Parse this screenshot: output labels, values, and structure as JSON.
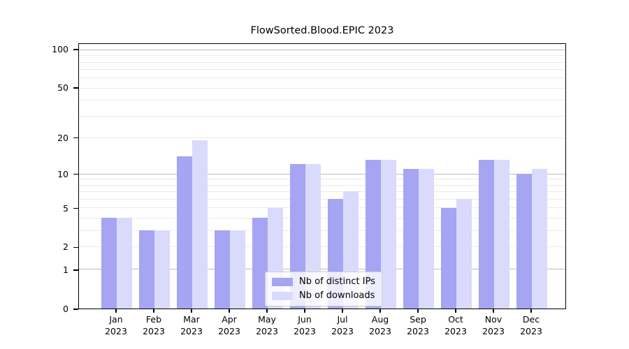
{
  "chart_data": {
    "type": "bar",
    "title": "FlowSorted.Blood.EPIC 2023",
    "categories": [
      "Jan",
      "Feb",
      "Mar",
      "Apr",
      "May",
      "Jun",
      "Jul",
      "Aug",
      "Sep",
      "Oct",
      "Nov",
      "Dec"
    ],
    "x_year_line": "2023",
    "series": [
      {
        "name": "Nb of distinct IPs",
        "color": "#a5a5f3",
        "values": [
          4,
          3,
          14,
          3,
          4,
          12,
          6,
          13,
          11,
          5,
          13,
          10
        ]
      },
      {
        "name": "Nb of downloads",
        "color": "#dadafc",
        "values": [
          4,
          3,
          19,
          3,
          5,
          12,
          7,
          13,
          11,
          6,
          13,
          11
        ]
      }
    ],
    "yscale": "log10(1+y)",
    "ylim": [
      0,
      112
    ],
    "yticks": [
      {
        "value": 100,
        "label": "100"
      },
      {
        "value": 50,
        "label": "50"
      },
      {
        "value": 20,
        "label": "20"
      },
      {
        "value": 10,
        "label": "10"
      },
      {
        "value": 5,
        "label": "5"
      },
      {
        "value": 2,
        "label": "2"
      },
      {
        "value": 1,
        "label": "1"
      },
      {
        "value": 0,
        "label": "0"
      }
    ],
    "major_gridlines": [
      1,
      10,
      100
    ],
    "minor_gridlines": [
      2,
      3,
      4,
      5,
      6,
      7,
      8,
      9,
      20,
      30,
      40,
      50,
      60,
      70,
      80,
      90
    ],
    "grid": "on",
    "legend_position": "lower center",
    "colors": {
      "grid_minor": "#ebebeb",
      "grid_major": "#bdbdbd",
      "axis": "#000000",
      "background": "#ffffff"
    }
  }
}
